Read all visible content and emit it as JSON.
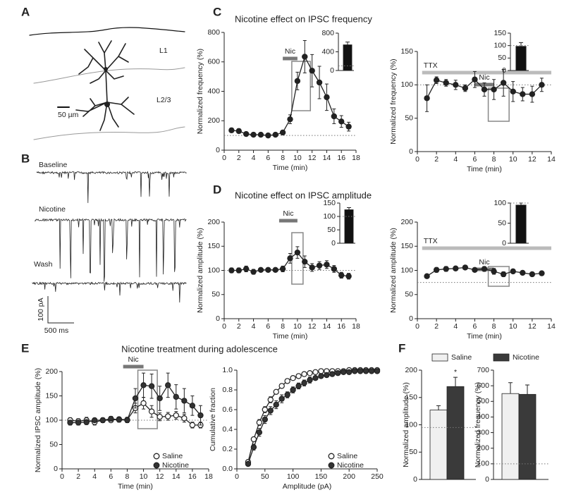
{
  "panels": {
    "A": {
      "label": "A",
      "layers": [
        "L1",
        "L2/3"
      ],
      "scale_bar": "50 µm"
    },
    "B": {
      "label": "B",
      "traces": [
        "Baseline",
        "Nicotine",
        "Wash"
      ],
      "scale_y": "100 pA",
      "scale_x": "500 ms"
    },
    "C": {
      "label": "C",
      "title": "Nicotine effect on IPSC frequency"
    },
    "D": {
      "label": "D",
      "title": "Nicotine effect on IPSC amplitude"
    },
    "E": {
      "label": "E",
      "title": "Nicotine treatment during adolescence"
    },
    "F": {
      "label": "F"
    }
  },
  "chart_data": [
    {
      "type": "line",
      "x_label": "Time (min)",
      "y_label": "Normalized frequency (%)",
      "x": [
        1,
        2,
        3,
        4,
        5,
        6,
        7,
        8,
        9,
        10,
        11,
        12,
        13,
        14,
        15,
        16,
        17
      ],
      "series": [
        {
          "color": "#222222",
          "fill": "#222222",
          "values": [
            135,
            130,
            110,
            105,
            105,
            100,
            105,
            120,
            210,
            470,
            635,
            540,
            460,
            360,
            230,
            195,
            160
          ],
          "errors": [
            15,
            15,
            10,
            10,
            10,
            10,
            10,
            15,
            30,
            60,
            110,
            110,
            110,
            90,
            50,
            40,
            30
          ]
        }
      ],
      "xlim": [
        0,
        18
      ],
      "xticks": [
        0,
        2,
        4,
        6,
        8,
        10,
        12,
        14,
        16,
        18
      ],
      "ylim": [
        0,
        800
      ],
      "yticks": [
        0,
        200,
        400,
        600,
        800
      ],
      "reference_line": 100,
      "bars": [
        {
          "label": "Nic",
          "start": 8,
          "end": 10,
          "color": "#777777"
        }
      ],
      "highlight": [
        10,
        11
      ]
    },
    {
      "type": "bar",
      "values": [
        550
      ],
      "errors": [
        60
      ],
      "color": "#111111",
      "ylim": [
        0,
        800
      ],
      "yticks": [
        0,
        400,
        800
      ],
      "reference_line": 100
    },
    {
      "type": "line",
      "x_label": "Time (min)",
      "y_label": "Normalized frequency (%)",
      "x": [
        1,
        2,
        3,
        4,
        5,
        6,
        7,
        8,
        9,
        10,
        11,
        12,
        13
      ],
      "series": [
        {
          "color": "#222222",
          "fill": "#222222",
          "values": [
            80,
            107,
            103,
            100,
            95,
            108,
            93,
            93,
            103,
            90,
            86,
            86,
            100
          ],
          "errors": [
            20,
            5,
            5,
            7,
            5,
            12,
            10,
            15,
            20,
            15,
            10,
            12,
            10
          ]
        }
      ],
      "xlim": [
        0,
        14
      ],
      "xticks": [
        0,
        2,
        4,
        6,
        8,
        10,
        12,
        14
      ],
      "ylim": [
        0,
        150
      ],
      "yticks": [
        0,
        50,
        100,
        150
      ],
      "reference_line": 100,
      "bars": [
        {
          "label": "TTX",
          "start": 0.5,
          "end": 14,
          "color": "#bbbbbb"
        },
        {
          "label": "Nic",
          "start": 6,
          "end": 8,
          "color": "#777777"
        }
      ],
      "highlight": [
        8,
        9
      ]
    },
    {
      "type": "bar",
      "values": [
        97
      ],
      "errors": [
        15
      ],
      "color": "#111111",
      "ylim": [
        0,
        150
      ],
      "yticks": [
        0,
        50,
        100,
        150
      ],
      "reference_line": 100
    },
    {
      "type": "line",
      "x_label": "Time (min)",
      "y_label": "Normalized amplitude (%)",
      "x": [
        1,
        2,
        3,
        4,
        5,
        6,
        7,
        8,
        9,
        10,
        11,
        12,
        13,
        14,
        15,
        16,
        17
      ],
      "series": [
        {
          "color": "#222222",
          "fill": "#222222",
          "values": [
            100,
            100,
            103,
            97,
            101,
            101,
            101,
            103,
            125,
            137,
            118,
            106,
            110,
            112,
            103,
            90,
            88
          ],
          "errors": [
            5,
            5,
            6,
            5,
            4,
            4,
            4,
            6,
            10,
            12,
            12,
            8,
            8,
            8,
            7,
            6,
            6
          ]
        }
      ],
      "xlim": [
        0,
        18
      ],
      "xticks": [
        0,
        2,
        4,
        6,
        8,
        10,
        12,
        14,
        16,
        18
      ],
      "ylim": [
        0,
        200
      ],
      "yticks": [
        0,
        50,
        100,
        150,
        200
      ],
      "reference_line": 100,
      "bars": [
        {
          "label": "Nic",
          "start": 7.5,
          "end": 10,
          "color": "#777777"
        }
      ],
      "highlight": [
        10
      ]
    },
    {
      "type": "bar",
      "values": [
        125
      ],
      "errors": [
        8
      ],
      "color": "#111111",
      "ylim": [
        0,
        150
      ],
      "yticks": [
        0,
        50,
        100,
        150
      ],
      "reference_line": 100
    },
    {
      "type": "line",
      "x_label": "Time (min)",
      "y_label": "Normalized amplitude (%)",
      "x": [
        1,
        2,
        3,
        4,
        5,
        6,
        7,
        8,
        9,
        10,
        11,
        12,
        13
      ],
      "series": [
        {
          "color": "#222222",
          "fill": "#222222",
          "values": [
            88,
            101,
            103,
            104,
            106,
            101,
            103,
            98,
            92,
            98,
            95,
            92,
            94
          ],
          "errors": [
            3,
            5,
            5,
            4,
            3,
            4,
            5,
            6,
            5,
            4,
            4,
            3,
            3
          ]
        }
      ],
      "xlim": [
        0,
        14
      ],
      "xticks": [
        0,
        2,
        4,
        6,
        8,
        10,
        12,
        14
      ],
      "ylim": [
        0,
        200
      ],
      "yticks": [
        0,
        50,
        100,
        150,
        200
      ],
      "reference_line": 75,
      "bars": [
        {
          "label": "TTX",
          "start": 0.5,
          "end": 14,
          "color": "#bbbbbb"
        },
        {
          "label": "Nic",
          "start": 6,
          "end": 8,
          "color": "#777777"
        }
      ],
      "highlight": [
        8,
        9
      ]
    },
    {
      "type": "bar",
      "values": [
        95
      ],
      "errors": [
        5
      ],
      "color": "#111111",
      "ylim": [
        0,
        100
      ],
      "yticks": [
        0,
        50,
        100
      ],
      "reference_line": 100
    },
    {
      "type": "line",
      "x_label": "Time (min)",
      "y_label": "Normalized IPSC amplitude (%)",
      "x": [
        1,
        2,
        3,
        4,
        5,
        6,
        7,
        8,
        9,
        10,
        11,
        12,
        13,
        14,
        15,
        16,
        17
      ],
      "series": [
        {
          "name": "Saline",
          "color": "#222222",
          "fill": "#ffffff",
          "values": [
            100,
            98,
            100,
            96,
            100,
            100,
            102,
            101,
            125,
            135,
            118,
            107,
            108,
            110,
            104,
            90,
            90
          ],
          "errors": [
            5,
            5,
            6,
            6,
            4,
            4,
            4,
            5,
            10,
            12,
            12,
            8,
            8,
            8,
            8,
            6,
            6
          ]
        },
        {
          "name": "Nicotine",
          "color": "#222222",
          "fill": "#333333",
          "values": [
            95,
            95,
            96,
            100,
            100,
            103,
            101,
            100,
            145,
            172,
            170,
            145,
            172,
            148,
            140,
            130,
            110
          ],
          "errors": [
            5,
            5,
            5,
            4,
            5,
            5,
            5,
            5,
            20,
            25,
            25,
            25,
            25,
            25,
            25,
            20,
            20
          ]
        }
      ],
      "xlim": [
        0,
        18
      ],
      "xticks": [
        0,
        2,
        4,
        6,
        8,
        10,
        12,
        14,
        16,
        18
      ],
      "ylim": [
        0,
        200
      ],
      "yticks": [
        0,
        50,
        100,
        150,
        200
      ],
      "reference_line": 100,
      "bars": [
        {
          "label": "Nic",
          "start": 7.5,
          "end": 10,
          "color": "#777777"
        }
      ],
      "highlight": [
        10,
        11
      ],
      "legend": "lower right"
    },
    {
      "type": "line",
      "x_label": "Amplitude (pA)",
      "y_label": "Cumulative fraction",
      "x": [
        20,
        30,
        40,
        50,
        60,
        70,
        80,
        90,
        100,
        110,
        120,
        130,
        140,
        150,
        160,
        170,
        180,
        190,
        200,
        210,
        220,
        230,
        240,
        250
      ],
      "series": [
        {
          "name": "Saline",
          "color": "#222222",
          "fill": "#ffffff",
          "values": [
            0.07,
            0.3,
            0.47,
            0.6,
            0.7,
            0.78,
            0.84,
            0.89,
            0.92,
            0.94,
            0.96,
            0.97,
            0.98,
            0.99,
            0.99,
            0.99,
            0.99,
            0.99,
            1,
            1,
            1,
            1,
            1,
            1
          ],
          "errors": [
            0.01,
            0.02,
            0.03,
            0.03,
            0.03,
            0.02,
            0.02,
            0.02,
            0.02,
            0.01,
            0.01,
            0.01,
            0.01,
            0.01,
            0.01,
            0.01,
            0.01,
            0.01,
            0.01,
            0.01,
            0.01,
            0.01,
            0.01,
            0.01
          ]
        },
        {
          "name": "Nicotine",
          "color": "#222222",
          "fill": "#333333",
          "values": [
            0.05,
            0.22,
            0.37,
            0.5,
            0.59,
            0.65,
            0.71,
            0.75,
            0.8,
            0.84,
            0.87,
            0.9,
            0.92,
            0.94,
            0.95,
            0.96,
            0.97,
            0.98,
            0.98,
            0.99,
            0.99,
            0.99,
            0.99,
            0.99
          ],
          "errors": [
            0.01,
            0.03,
            0.04,
            0.04,
            0.04,
            0.04,
            0.04,
            0.03,
            0.03,
            0.03,
            0.03,
            0.03,
            0.02,
            0.02,
            0.02,
            0.02,
            0.02,
            0.01,
            0.01,
            0.01,
            0.01,
            0.01,
            0.01,
            0.01
          ]
        }
      ],
      "xlim": [
        0,
        250
      ],
      "xticks": [
        0,
        50,
        100,
        150,
        200,
        250
      ],
      "ylim": [
        0,
        1
      ],
      "yticks": [
        {
          "value": 0,
          "label": "0.0"
        },
        0.2,
        0.4,
        0.6,
        0.8,
        {
          "value": 1,
          "label": "1.0"
        }
      ],
      "legend": "lower right"
    },
    {
      "type": "bar",
      "y_label": "Normalized amplitude (%)",
      "series": [
        {
          "name": "Saline",
          "color": "#f0f0f0",
          "values": [
            127
          ],
          "errors": [
            8
          ]
        },
        {
          "name": "Nicotine",
          "color": "#3a3a3a",
          "values": [
            170
          ],
          "errors": [
            17
          ],
          "annotation": "*"
        }
      ],
      "ylim": [
        0,
        200
      ],
      "yticks": [
        0,
        50,
        100,
        150,
        200
      ],
      "reference_line": 95,
      "legend": "top"
    },
    {
      "type": "bar",
      "y_label": "Normalized frequency (%)",
      "series": [
        {
          "color": "#f0f0f0",
          "values": [
            550
          ],
          "errors": [
            70
          ]
        },
        {
          "color": "#3a3a3a",
          "values": [
            545
          ],
          "errors": [
            60
          ]
        }
      ],
      "ylim": [
        0,
        700
      ],
      "yticks": [
        0,
        100,
        200,
        300,
        400,
        500,
        600,
        700
      ],
      "reference_line": 100
    }
  ]
}
